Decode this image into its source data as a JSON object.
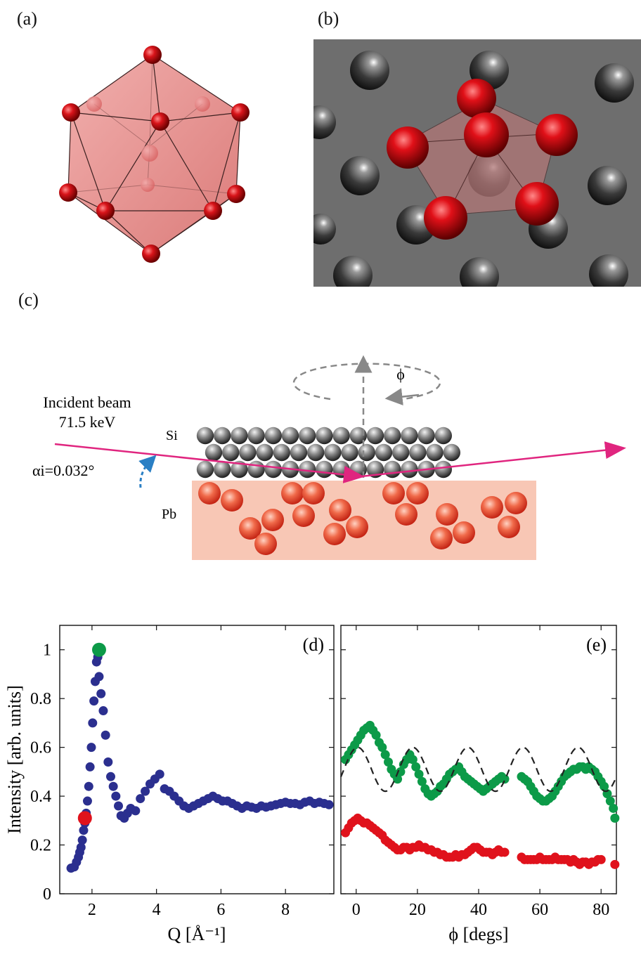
{
  "panels": {
    "a": "(a)",
    "b": "(b)",
    "c": "(c)",
    "d": "(d)",
    "e": "(e)"
  },
  "schematic": {
    "beam_label_line1": "Incident beam",
    "beam_label_line2": "71.5 keV",
    "alpha_label": "αi=0.032°",
    "phi_label": "ϕ",
    "si_label": "Si",
    "pb_label": "Pb"
  },
  "colors": {
    "red_atom": "#d8141a",
    "icosahedron_fill": "#e88a88",
    "gray_surface": "#6e6e6e",
    "beam": "#e0257f",
    "pb_layer": "#f8c7b5",
    "blue_series": "#2b2f8f",
    "green_series": "#0c9a48",
    "red_series": "#e0121c"
  },
  "chart_data": [
    {
      "type": "scatter",
      "panel_label": "(d)",
      "xlabel": "Q [Å⁻¹]",
      "ylabel": "Intensity [arb. units]",
      "xlim": [
        1.0,
        9.5
      ],
      "ylim": [
        0,
        1.1
      ],
      "x_ticks": [
        2,
        4,
        6,
        8
      ],
      "y_ticks": [
        0,
        0.2,
        0.4,
        0.6,
        0.8,
        1
      ],
      "grid": false,
      "series": [
        {
          "color": "#2b2f8f",
          "x": [
            1.35,
            1.45,
            1.52,
            1.58,
            1.62,
            1.66,
            1.7,
            1.74,
            1.78,
            1.82,
            1.86,
            1.9,
            1.94,
            1.98,
            2.02,
            2.06,
            2.1,
            2.14,
            2.18,
            2.22,
            2.28,
            2.35,
            2.42,
            2.5,
            2.58,
            2.66,
            2.74,
            2.82,
            2.9,
            3.0,
            3.1,
            3.2,
            3.35,
            3.5,
            3.65,
            3.8,
            3.95,
            4.1,
            4.25,
            4.4,
            4.55,
            4.7,
            4.85,
            5.0,
            5.15,
            5.3,
            5.45,
            5.6,
            5.75,
            5.9,
            6.05,
            6.2,
            6.35,
            6.5,
            6.65,
            6.8,
            6.95,
            7.1,
            7.25,
            7.4,
            7.55,
            7.7,
            7.85,
            8.0,
            8.15,
            8.3,
            8.45,
            8.6,
            8.75,
            8.9,
            9.05,
            9.2,
            9.35
          ],
          "y": [
            0.105,
            0.11,
            0.13,
            0.15,
            0.17,
            0.19,
            0.22,
            0.26,
            0.29,
            0.33,
            0.38,
            0.44,
            0.52,
            0.6,
            0.7,
            0.79,
            0.87,
            0.95,
            0.97,
            0.89,
            0.82,
            0.75,
            0.65,
            0.54,
            0.48,
            0.44,
            0.4,
            0.36,
            0.32,
            0.31,
            0.33,
            0.35,
            0.34,
            0.39,
            0.42,
            0.45,
            0.47,
            0.49,
            0.43,
            0.42,
            0.4,
            0.38,
            0.36,
            0.35,
            0.36,
            0.37,
            0.38,
            0.39,
            0.4,
            0.39,
            0.38,
            0.38,
            0.37,
            0.36,
            0.35,
            0.36,
            0.355,
            0.35,
            0.36,
            0.355,
            0.36,
            0.365,
            0.37,
            0.375,
            0.37,
            0.37,
            0.365,
            0.375,
            0.38,
            0.37,
            0.375,
            0.37,
            0.365
          ]
        }
      ],
      "highlighted_points": [
        {
          "x": 1.78,
          "y": 0.31,
          "color": "#e0121c"
        },
        {
          "x": 2.22,
          "y": 1.0,
          "color": "#0c9a48"
        }
      ]
    },
    {
      "type": "scatter",
      "panel_label": "(e)",
      "xlabel": "ϕ [degs]",
      "xlim": [
        -5,
        85
      ],
      "ylim": [
        0,
        1.1
      ],
      "x_ticks": [
        0,
        20,
        40,
        60,
        80
      ],
      "y_ticks": [
        0,
        0.2,
        0.4,
        0.6,
        0.8,
        1
      ],
      "grid": false,
      "series": [
        {
          "color": "#0c9a48",
          "x": [
            -3.5,
            -2.5,
            -1.5,
            -0.5,
            0.5,
            1.5,
            2.5,
            3.5,
            4.5,
            5.5,
            6.5,
            7.5,
            8.5,
            9.5,
            10.5,
            11.5,
            12.5,
            13.5,
            14.5,
            15.5,
            16.5,
            17.5,
            18.5,
            19.5,
            20.5,
            21.5,
            22.5,
            23.5,
            24.5,
            25.5,
            26.5,
            27.5,
            28.5,
            29.5,
            30.5,
            31.5,
            32.5,
            33.5,
            34.5,
            35.5,
            36.5,
            37.5,
            38.5,
            39.5,
            40.5,
            41.5,
            42.5,
            43.5,
            44.5,
            45.5,
            46.5,
            47.5,
            48.5,
            54,
            55,
            56,
            57,
            58,
            59,
            60,
            61,
            62,
            63,
            64,
            65,
            66,
            67,
            68,
            69,
            70,
            71,
            72,
            73,
            74,
            75,
            76,
            77,
            78,
            79,
            80,
            81,
            82,
            83,
            84,
            84.5
          ],
          "y": [
            0.55,
            0.57,
            0.59,
            0.61,
            0.63,
            0.65,
            0.67,
            0.68,
            0.69,
            0.67,
            0.65,
            0.62,
            0.6,
            0.57,
            0.54,
            0.51,
            0.49,
            0.47,
            0.5,
            0.53,
            0.55,
            0.57,
            0.55,
            0.52,
            0.49,
            0.46,
            0.43,
            0.41,
            0.4,
            0.41,
            0.42,
            0.44,
            0.45,
            0.47,
            0.49,
            0.5,
            0.51,
            0.52,
            0.5,
            0.48,
            0.47,
            0.46,
            0.45,
            0.44,
            0.43,
            0.42,
            0.43,
            0.44,
            0.45,
            0.46,
            0.47,
            0.48,
            0.47,
            0.48,
            0.47,
            0.46,
            0.44,
            0.42,
            0.4,
            0.39,
            0.38,
            0.38,
            0.39,
            0.4,
            0.42,
            0.44,
            0.46,
            0.48,
            0.49,
            0.5,
            0.51,
            0.51,
            0.52,
            0.52,
            0.51,
            0.52,
            0.51,
            0.5,
            0.48,
            0.46,
            0.44,
            0.41,
            0.38,
            0.35,
            0.31
          ]
        },
        {
          "color": "#e0121c",
          "x": [
            -3.5,
            -2.5,
            -1.5,
            -0.5,
            0.5,
            1.5,
            2.5,
            3.5,
            4.5,
            5.5,
            6.5,
            7.5,
            8.5,
            9.5,
            10.5,
            11.5,
            12.5,
            13.5,
            14.5,
            15.5,
            16.5,
            17.5,
            18.5,
            19.5,
            20.5,
            21.5,
            22.5,
            23.5,
            24.5,
            25.5,
            26.5,
            27.5,
            28.5,
            29.5,
            30.5,
            31.5,
            32.5,
            33.5,
            34.5,
            35.5,
            36.5,
            37.5,
            38.5,
            39.5,
            40.5,
            41.5,
            42.5,
            43.5,
            44.5,
            45.5,
            46.5,
            47.5,
            48.5,
            54,
            55,
            56,
            57,
            58,
            59,
            60,
            61,
            62,
            63,
            64,
            65,
            66,
            67,
            68,
            69,
            70,
            71,
            72,
            73,
            74,
            75,
            76,
            77,
            78,
            79,
            80,
            84.5
          ],
          "y": [
            0.25,
            0.27,
            0.29,
            0.3,
            0.31,
            0.3,
            0.29,
            0.29,
            0.28,
            0.27,
            0.26,
            0.25,
            0.24,
            0.22,
            0.21,
            0.2,
            0.19,
            0.18,
            0.18,
            0.19,
            0.19,
            0.18,
            0.19,
            0.19,
            0.2,
            0.19,
            0.19,
            0.18,
            0.18,
            0.17,
            0.17,
            0.16,
            0.16,
            0.15,
            0.15,
            0.15,
            0.16,
            0.15,
            0.16,
            0.16,
            0.17,
            0.18,
            0.19,
            0.19,
            0.18,
            0.17,
            0.17,
            0.17,
            0.16,
            0.17,
            0.18,
            0.17,
            0.17,
            0.15,
            0.14,
            0.14,
            0.14,
            0.14,
            0.14,
            0.15,
            0.14,
            0.14,
            0.14,
            0.14,
            0.15,
            0.14,
            0.14,
            0.14,
            0.14,
            0.13,
            0.14,
            0.13,
            0.12,
            0.13,
            0.13,
            0.12,
            0.13,
            0.13,
            0.14,
            0.14,
            0.12
          ]
        },
        {
          "type": "line",
          "style": "dashed",
          "color": "#222222",
          "function": "0.51 + 0.09*cos(2*pi*(phi-0.5)/18)"
        }
      ]
    }
  ]
}
